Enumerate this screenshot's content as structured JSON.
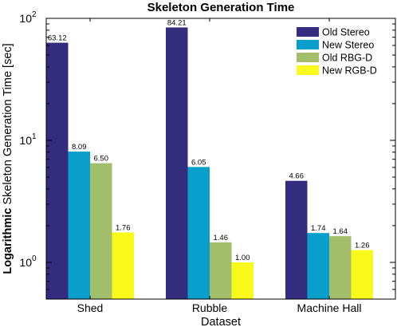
{
  "chart_data": {
    "type": "bar",
    "title": "Skeleton Generation Time",
    "xlabel": "Dataset",
    "ylabel_bold": "Logarithmic",
    "ylabel_rest": " Skeleton Generation Time [sec]",
    "yscale": "log",
    "ylim": [
      0.5,
      100
    ],
    "ytick_base": "10",
    "ytick_exponents": [
      "0",
      "1",
      "2"
    ],
    "categories": [
      "Shed",
      "Rubble",
      "Machine Hall"
    ],
    "series": [
      {
        "name": "Old Stereo",
        "color": "#342C7E",
        "values": [
          63.12,
          84.21,
          4.66
        ],
        "labels": [
          "63.12",
          "84.21",
          "4.66"
        ]
      },
      {
        "name": "New Stereo",
        "color": "#099ECC",
        "values": [
          8.09,
          6.05,
          1.74
        ],
        "labels": [
          "8.09",
          "6.05",
          "1.74"
        ]
      },
      {
        "name": "Old RBG-D",
        "color": "#A2BE6B",
        "values": [
          6.5,
          1.46,
          1.64
        ],
        "labels": [
          "6.50",
          "1.46",
          "1.64"
        ]
      },
      {
        "name": "New RGB-D",
        "color": "#F9F91B",
        "values": [
          1.76,
          1.0,
          1.26
        ],
        "labels": [
          "1.76",
          "1.00",
          "1.26"
        ]
      }
    ],
    "legend_position": "top-right",
    "grid": false
  }
}
